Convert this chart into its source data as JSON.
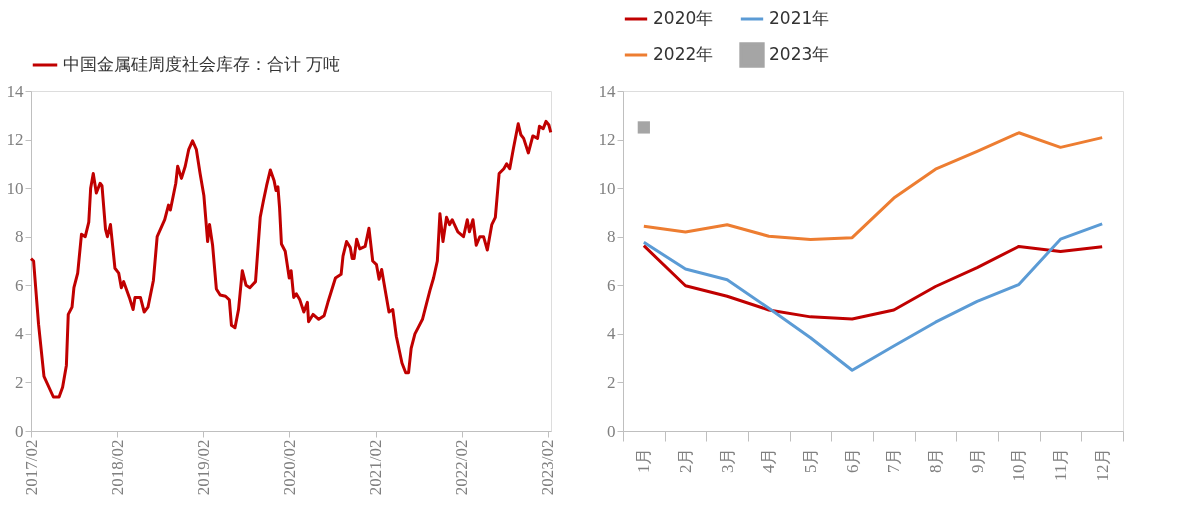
{
  "chart_data": [
    {
      "type": "line",
      "legend": "top left",
      "marker": "none",
      "line_style": "solid",
      "x": [
        "2017-02-01",
        "2017-02-12",
        "2017-03-05",
        "2017-03-28",
        "2017-05-07",
        "2017-05-31",
        "2017-06-15",
        "2017-07-01",
        "2017-07-09",
        "2017-07-25",
        "2017-08-02",
        "2017-08-18",
        "2017-09-03",
        "2017-09-19",
        "2017-10-04",
        "2017-10-12",
        "2017-10-23",
        "2017-11-05",
        "2017-11-21",
        "2017-11-29",
        "2017-12-14",
        "2017-12-22",
        "2018-01-04",
        "2018-01-23",
        "2018-02-08",
        "2018-02-19",
        "2018-03-01",
        "2018-03-25",
        "2018-04-10",
        "2018-04-18",
        "2018-05-11",
        "2018-05-27",
        "2018-06-12",
        "2018-07-05",
        "2018-07-21",
        "2018-08-22",
        "2018-09-07",
        "2018-09-15",
        "2018-10-08",
        "2018-10-16",
        "2018-11-01",
        "2018-11-17",
        "2018-12-02",
        "2018-12-18",
        "2019-01-03",
        "2019-01-19",
        "2019-02-04",
        "2019-02-20",
        "2019-02-28",
        "2019-03-13",
        "2019-03-29",
        "2019-04-14",
        "2019-05-07",
        "2019-05-23",
        "2019-06-01",
        "2019-06-16",
        "2019-07-01",
        "2019-07-17",
        "2019-08-02",
        "2019-08-18",
        "2019-09-11",
        "2019-10-01",
        "2019-10-15",
        "2019-10-28",
        "2019-11-13",
        "2019-11-29",
        "2019-12-07",
        "2019-12-15",
        "2019-12-22",
        "2019-12-30",
        "2020-01-15",
        "2020-02-01",
        "2020-02-09",
        "2020-02-20",
        "2020-03-02",
        "2020-03-17",
        "2020-04-03",
        "2020-04-18",
        "2020-04-23",
        "2020-05-12",
        "2020-06-05",
        "2020-06-28",
        "2020-07-14",
        "2020-08-15",
        "2020-09-08",
        "2020-09-16",
        "2020-10-01",
        "2020-10-17",
        "2020-10-25",
        "2020-11-02",
        "2020-11-13",
        "2020-11-26",
        "2020-12-19",
        "2021-01-04",
        "2021-01-20",
        "2021-02-05",
        "2021-02-16",
        "2021-02-27",
        "2021-03-14",
        "2021-03-30",
        "2021-04-15",
        "2021-04-30",
        "2021-05-24",
        "2021-06-09",
        "2021-06-21",
        "2021-07-02",
        "2021-07-18",
        "2021-08-03",
        "2021-08-19",
        "2021-09-04",
        "2021-09-20",
        "2021-10-05",
        "2021-10-21",
        "2021-11-01",
        "2021-11-14",
        "2021-11-29",
        "2021-12-12",
        "2021-12-23",
        "2022-01-16",
        "2022-02-09",
        "2022-02-25",
        "2022-03-06",
        "2022-03-21",
        "2022-04-04",
        "2022-04-19",
        "2022-05-05",
        "2022-05-21",
        "2022-06-09",
        "2022-06-24",
        "2022-07-10",
        "2022-07-30",
        "2022-08-11",
        "2022-08-24",
        "2022-09-09",
        "2022-09-29",
        "2022-10-10",
        "2022-10-22",
        "2022-11-11",
        "2022-11-30",
        "2022-12-20",
        "2022-12-28",
        "2023-01-13",
        "2023-01-25",
        "2023-02-06",
        "2023-02-14"
      ],
      "series": [
        {
          "name": "中国金属硅周度社会库存：合计 万吨",
          "color": "#c00000",
          "values": [
            7.1,
            7.0,
            4.4,
            2.25,
            1.4,
            1.4,
            1.8,
            2.7,
            4.8,
            5.1,
            5.9,
            6.5,
            8.1,
            8.0,
            8.6,
            10.0,
            10.6,
            9.8,
            10.2,
            10.1,
            8.3,
            8.0,
            8.5,
            6.7,
            6.5,
            5.9,
            6.15,
            5.5,
            5.0,
            5.5,
            5.5,
            4.9,
            5.1,
            6.2,
            8.0,
            8.7,
            9.3,
            9.1,
            10.2,
            10.9,
            10.4,
            10.9,
            11.6,
            11.95,
            11.6,
            10.6,
            9.7,
            7.8,
            8.5,
            7.65,
            5.85,
            5.6,
            5.55,
            5.4,
            4.35,
            4.25,
            5.0,
            6.6,
            6.0,
            5.9,
            6.15,
            8.8,
            9.5,
            10.1,
            10.75,
            10.3,
            9.9,
            10.05,
            9.2,
            7.7,
            7.4,
            6.3,
            6.6,
            5.5,
            5.65,
            5.4,
            4.9,
            5.3,
            4.5,
            4.8,
            4.6,
            4.75,
            5.3,
            6.3,
            6.45,
            7.2,
            7.8,
            7.55,
            7.1,
            7.1,
            7.9,
            7.5,
            7.6,
            8.35,
            7.0,
            6.85,
            6.25,
            6.65,
            5.8,
            4.9,
            5.0,
            3.9,
            2.8,
            2.4,
            2.4,
            3.4,
            4.0,
            4.3,
            4.6,
            5.2,
            5.8,
            6.3,
            7.0,
            8.95,
            7.8,
            8.8,
            8.5,
            8.7,
            8.2,
            8.0,
            8.7,
            8.2,
            8.7,
            7.65,
            8.0,
            8.0,
            7.45,
            8.5,
            8.8,
            10.6,
            10.8,
            11.0,
            10.8,
            11.65,
            12.65,
            12.2,
            12.05,
            11.45,
            12.15,
            12.05,
            12.55,
            12.45,
            12.75,
            12.6,
            12.3
          ]
        }
      ],
      "xlim": [
        "2017-02-01",
        "2023-02-15"
      ],
      "xticks": [
        {
          "value": "2017-02-01",
          "label": "2017/02"
        },
        {
          "value": "2018-02-01",
          "label": "2018/02"
        },
        {
          "value": "2019-02-01",
          "label": "2019/02"
        },
        {
          "value": "2020-02-01",
          "label": "2020/02"
        },
        {
          "value": "2021-02-01",
          "label": "2021/02"
        },
        {
          "value": "2022-02-01",
          "label": "2022/02"
        },
        {
          "value": "2023-02-01",
          "label": "2023/02"
        }
      ],
      "ylim": [
        0,
        14
      ],
      "yticks": [
        0,
        2,
        4,
        6,
        8,
        10,
        12,
        14
      ]
    },
    {
      "type": "line",
      "legend": "top",
      "categories": [
        "1月",
        "2月",
        "3月",
        "4月",
        "5月",
        "6月",
        "7月",
        "8月",
        "9月",
        "10月",
        "11月",
        "12月"
      ],
      "series": [
        {
          "name": "2020年",
          "color": "#c00000",
          "marker": "none",
          "values": [
            7.63,
            5.98,
            5.55,
            4.98,
            4.7,
            4.61,
            4.98,
            5.95,
            6.73,
            7.6,
            7.39,
            7.59
          ]
        },
        {
          "name": "2021年",
          "color": "#5b9bd5",
          "marker": "none",
          "values": [
            7.77,
            6.67,
            6.23,
            5.05,
            3.84,
            2.5,
            3.5,
            4.48,
            5.34,
            6.03,
            7.9,
            8.53
          ]
        },
        {
          "name": "2022年",
          "color": "#ed7d31",
          "marker": "none",
          "values": [
            8.43,
            8.19,
            8.49,
            8.02,
            7.89,
            7.96,
            9.59,
            10.78,
            11.51,
            12.28,
            11.68,
            12.08
          ]
        },
        {
          "name": "2023年",
          "color": "#a5a5a5",
          "marker": "square",
          "values": [
            12.5,
            null,
            null,
            null,
            null,
            null,
            null,
            null,
            null,
            null,
            null,
            null
          ]
        }
      ],
      "ylim": [
        0,
        14
      ],
      "yticks": [
        0,
        2,
        4,
        6,
        8,
        10,
        12,
        14
      ]
    }
  ]
}
